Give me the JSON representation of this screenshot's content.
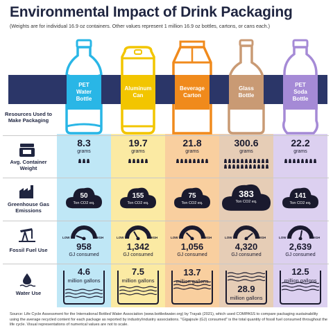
{
  "title": "Environmental Impact of Drink Packaging",
  "subtitle": "(Weights are for individual 16.9 oz containers. Other values represent 1 million 16.9 oz bottles, cartons, or cans each.)",
  "banner_label": "Resources Used to Make Packaging",
  "row_labels": {
    "weight": "Avg. Container Weight",
    "ghg": "Greenhouse Gas Emissions",
    "fossil": "Fossil Fuel Use",
    "water": "Water Use"
  },
  "gauge_labels": {
    "low": "LOW",
    "high": "HIGH"
  },
  "columns": [
    {
      "name": "PET Water Bottle",
      "line1": "PET",
      "line2": "Water",
      "line3": "Bottle",
      "color": "#29b6e6",
      "bg": "#bfe7f6",
      "weight": "8.3",
      "weight_unit": "grams",
      "ghg": "50",
      "ghg_unit": "Ton CO2 eq.",
      "fossil": "958",
      "fossil_unit": "GJ consumed",
      "water": "4.6",
      "water_unit": "million gallons"
    },
    {
      "name": "Aluminum Can",
      "line1": "Aluminum",
      "line2": "Can",
      "line3": "",
      "color": "#f2c500",
      "bg": "#fbeaa3",
      "weight": "19.7",
      "weight_unit": "grams",
      "ghg": "155",
      "ghg_unit": "Ton CO2 eq.",
      "fossil": "1,342",
      "fossil_unit": "GJ consumed",
      "water": "7.5",
      "water_unit": "million gallons"
    },
    {
      "name": "Beverage Carton",
      "line1": "Beverage",
      "line2": "Carton",
      "line3": "",
      "color": "#f08a1c",
      "bg": "#f9cf9f",
      "weight": "21.8",
      "weight_unit": "grams",
      "ghg": "75",
      "ghg_unit": "Ton CO2 eq.",
      "fossil": "1,056",
      "fossil_unit": "GJ consumed",
      "water": "13.7",
      "water_unit": "million gallons"
    },
    {
      "name": "Glass Bottle",
      "line1": "Glass",
      "line2": "Bottle",
      "line3": "",
      "color": "#c99a74",
      "bg": "#e6cdb6",
      "weight": "300.6",
      "weight_unit": "grams",
      "ghg": "383",
      "ghg_unit": "Ton CO2 eq.",
      "fossil": "4,320",
      "fossil_unit": "GJ consumed",
      "water": "28.9",
      "water_unit": "million gallons"
    },
    {
      "name": "PET Soda Bottle",
      "line1": "PET",
      "line2": "Soda",
      "line3": "Bottle",
      "color": "#a58ad6",
      "bg": "#dcd0f0",
      "weight": "22.2",
      "weight_unit": "grams",
      "ghg": "141",
      "ghg_unit": "Ton CO2 eq.",
      "fossil": "2,639",
      "fossil_unit": "GJ consumed",
      "water": "12.5",
      "water_unit": "million gallons"
    }
  ],
  "source": "Source: Life Cycle Assessment for the International Bottled Water Association (www.bottledwater.org) by Trayak (2021), which used COMPASS to compare packaging sustainability using the average recycled content for each package as reported by industry/industry associations. \"Gigajoule (GJ) consumed\" is the total quantity of fossil fuel consumed throughout the life cycle. Visual representations of numerical values are not to scale."
}
